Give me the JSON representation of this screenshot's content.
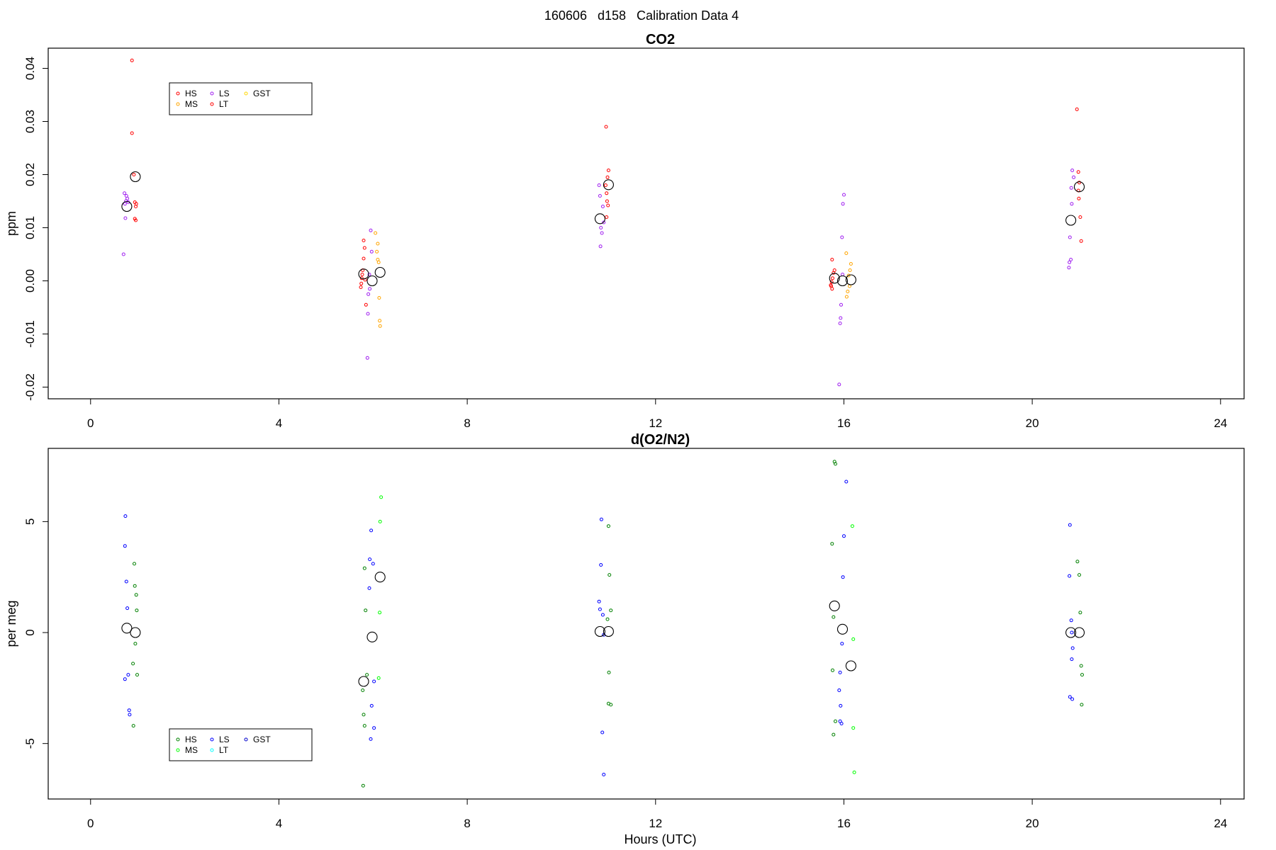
{
  "figure_title": "160606   d158   Calibration Data 4",
  "colors": {
    "HS_co2": "#ff0000",
    "MS_co2": "#ffa500",
    "LS_co2": "#a020f0",
    "LT_co2": "#ff0000",
    "GST_co2": "#ffd700",
    "HS_o2": "#008000",
    "MS_o2": "#00ff00",
    "LS_o2": "#0000ff",
    "LT_o2": "#00ffff",
    "GST_o2": "#0000cc",
    "mean": "#000000"
  },
  "chart_data": [
    {
      "type": "scatter",
      "title": "CO2",
      "xlabel": "",
      "ylabel": "ppm",
      "xlim": [
        -0.9,
        24.5
      ],
      "ylim": [
        -0.0222,
        0.0438
      ],
      "xticks": [
        "0",
        "4",
        "8",
        "12",
        "16",
        "20",
        "24"
      ],
      "yticks": [
        "-0.02",
        "-0.01",
        "0.00",
        "0.01",
        "0.02",
        "0.03",
        "0.04"
      ],
      "legend": {
        "position": "top-left",
        "entries": [
          {
            "label": "HS",
            "color": "#ff0000"
          },
          {
            "label": "MS",
            "color": "#ffa500"
          },
          {
            "label": "LS",
            "color": "#a020f0"
          },
          {
            "label": "LT",
            "color": "#ff0000"
          },
          {
            "label": "GST",
            "color": "#ffd700"
          }
        ]
      },
      "series": [
        {
          "name": "HS",
          "color": "#ff0000",
          "points": [
            [
              0.88,
              0.0415
            ],
            [
              0.88,
              0.0278
            ],
            [
              0.92,
              0.02
            ],
            [
              0.94,
              0.0148
            ],
            [
              0.97,
              0.0145
            ],
            [
              0.96,
              0.014
            ],
            [
              0.94,
              0.0117
            ],
            [
              0.96,
              0.0114
            ],
            [
              5.8,
              0.0076
            ],
            [
              5.82,
              0.0062
            ],
            [
              5.8,
              0.0042
            ],
            [
              5.78,
              0.002
            ],
            [
              5.77,
              0.0012
            ],
            [
              5.76,
              0.0005
            ],
            [
              5.75,
              -0.0005
            ],
            [
              5.74,
              -0.0012
            ],
            [
              5.83,
              0.0002
            ],
            [
              5.85,
              -0.0045
            ],
            [
              10.95,
              0.029
            ],
            [
              11.0,
              0.0208
            ],
            [
              10.98,
              0.0195
            ],
            [
              10.94,
              0.018
            ],
            [
              10.96,
              0.0165
            ],
            [
              10.97,
              0.015
            ],
            [
              10.99,
              0.0142
            ],
            [
              10.96,
              0.012
            ],
            [
              15.75,
              0.004
            ],
            [
              15.8,
              0.002
            ],
            [
              15.78,
              0.0015
            ],
            [
              15.76,
              0.0005
            ],
            [
              15.74,
              -0.0002
            ],
            [
              15.73,
              -0.001
            ],
            [
              15.75,
              -0.0015
            ],
            [
              15.72,
              -0.0008
            ],
            [
              20.95,
              0.0323
            ],
            [
              20.98,
              0.0205
            ],
            [
              21.0,
              0.0185
            ],
            [
              20.98,
              0.017
            ],
            [
              20.99,
              0.0155
            ],
            [
              21.02,
              0.012
            ],
            [
              21.04,
              0.0075
            ]
          ]
        },
        {
          "name": "MS",
          "color": "#ffa500",
          "points": [
            [
              6.05,
              0.009
            ],
            [
              6.1,
              0.007
            ],
            [
              6.08,
              0.0055
            ],
            [
              6.1,
              0.004
            ],
            [
              6.12,
              0.0035
            ],
            [
              6.13,
              -0.0032
            ],
            [
              6.14,
              -0.0075
            ],
            [
              6.15,
              -0.0085
            ],
            [
              16.05,
              0.0052
            ],
            [
              16.15,
              0.0032
            ],
            [
              16.13,
              0.002
            ],
            [
              16.1,
              0.001
            ],
            [
              16.12,
              -0.001
            ],
            [
              16.08,
              -0.002
            ],
            [
              16.06,
              -0.003
            ]
          ]
        },
        {
          "name": "LS",
          "color": "#a020f0",
          "points": [
            [
              0.72,
              0.0165
            ],
            [
              0.76,
              0.016
            ],
            [
              0.78,
              0.0155
            ],
            [
              0.75,
              0.015
            ],
            [
              0.8,
              0.0148
            ],
            [
              0.73,
              0.0145
            ],
            [
              0.74,
              0.0118
            ],
            [
              0.7,
              0.005
            ],
            [
              5.95,
              0.0095
            ],
            [
              5.97,
              0.0055
            ],
            [
              5.92,
              0.0012
            ],
            [
              5.93,
              -0.0015
            ],
            [
              5.9,
              -0.0025
            ],
            [
              5.89,
              -0.0062
            ],
            [
              5.88,
              -0.0145
            ],
            [
              10.8,
              0.018
            ],
            [
              10.82,
              0.016
            ],
            [
              10.88,
              0.014
            ],
            [
              10.9,
              0.011
            ],
            [
              10.84,
              0.01
            ],
            [
              10.86,
              0.009
            ],
            [
              10.83,
              0.0065
            ],
            [
              16.0,
              0.0162
            ],
            [
              15.98,
              0.0145
            ],
            [
              15.96,
              0.0082
            ],
            [
              15.97,
              0.0012
            ],
            [
              15.94,
              -0.0045
            ],
            [
              15.93,
              -0.007
            ],
            [
              15.92,
              -0.008
            ],
            [
              15.9,
              -0.0195
            ],
            [
              20.85,
              0.0208
            ],
            [
              20.88,
              0.0195
            ],
            [
              20.83,
              0.0175
            ],
            [
              20.84,
              0.0145
            ],
            [
              20.8,
              0.0082
            ],
            [
              20.82,
              0.004
            ],
            [
              20.79,
              0.0035
            ],
            [
              20.78,
              0.0025
            ]
          ]
        },
        {
          "name": "mean",
          "color": "#000000",
          "marker": "large-circle",
          "points": [
            [
              0.77,
              0.014
            ],
            [
              0.95,
              0.0196
            ],
            [
              5.8,
              0.0013
            ],
            [
              5.98,
              0.0
            ],
            [
              6.15,
              0.0016
            ],
            [
              10.82,
              0.0117
            ],
            [
              11.0,
              0.0181
            ],
            [
              15.8,
              0.0005
            ],
            [
              15.97,
              0.0
            ],
            [
              16.15,
              0.0002
            ],
            [
              20.82,
              0.0114
            ],
            [
              21.0,
              0.0177
            ]
          ]
        }
      ]
    },
    {
      "type": "scatter",
      "title": "d(O2/N2)",
      "xlabel": "Hours (UTC)",
      "ylabel": "per meg",
      "xlim": [
        -0.9,
        24.5
      ],
      "ylim": [
        -7.5,
        8.3
      ],
      "xticks": [
        "0",
        "4",
        "8",
        "12",
        "16",
        "20",
        "24"
      ],
      "yticks": [
        "-5",
        "0",
        "5"
      ],
      "legend": {
        "position": "bottom-left",
        "entries": [
          {
            "label": "HS",
            "color": "#008000"
          },
          {
            "label": "MS",
            "color": "#00ff00"
          },
          {
            "label": "LS",
            "color": "#0000ff"
          },
          {
            "label": "LT",
            "color": "#00ffff"
          },
          {
            "label": "GST",
            "color": "#0000cc"
          }
        ]
      },
      "series": [
        {
          "name": "HS",
          "color": "#008000",
          "points": [
            [
              0.93,
              3.1
            ],
            [
              0.94,
              2.1
            ],
            [
              0.97,
              1.7
            ],
            [
              0.98,
              1.0
            ],
            [
              0.95,
              -0.5
            ],
            [
              0.9,
              -1.4
            ],
            [
              0.99,
              -1.9
            ],
            [
              0.91,
              -4.2
            ],
            [
              5.82,
              2.9
            ],
            [
              5.84,
              1.0
            ],
            [
              5.87,
              -1.9
            ],
            [
              5.78,
              -2.6
            ],
            [
              5.8,
              -3.7
            ],
            [
              5.82,
              -4.2
            ],
            [
              5.79,
              -6.9
            ],
            [
              11.0,
              4.8
            ],
            [
              11.02,
              2.6
            ],
            [
              11.05,
              1.0
            ],
            [
              10.98,
              0.6
            ],
            [
              11.01,
              -1.8
            ],
            [
              11.0,
              -3.2
            ],
            [
              11.05,
              -3.25
            ],
            [
              15.8,
              7.7
            ],
            [
              15.82,
              7.6
            ],
            [
              15.75,
              4.0
            ],
            [
              15.78,
              0.7
            ],
            [
              15.76,
              -1.7
            ],
            [
              15.82,
              -4.0
            ],
            [
              15.78,
              -4.6
            ],
            [
              20.96,
              3.2
            ],
            [
              21.0,
              2.6
            ],
            [
              21.02,
              0.9
            ],
            [
              21.04,
              -1.5
            ],
            [
              21.06,
              -1.9
            ],
            [
              21.05,
              -3.25
            ]
          ]
        },
        {
          "name": "MS",
          "color": "#00ff00",
          "points": [
            [
              6.17,
              6.1
            ],
            [
              6.15,
              5.0
            ],
            [
              6.14,
              0.9
            ],
            [
              6.12,
              -2.05
            ],
            [
              16.18,
              4.8
            ],
            [
              16.2,
              -0.3
            ],
            [
              16.2,
              -4.3
            ],
            [
              16.22,
              -6.3
            ]
          ]
        },
        {
          "name": "LS",
          "color": "#0000ff",
          "points": [
            [
              0.74,
              5.25
            ],
            [
              0.73,
              3.9
            ],
            [
              0.76,
              2.3
            ],
            [
              0.78,
              1.1
            ],
            [
              0.8,
              -1.9
            ],
            [
              0.73,
              -2.1
            ],
            [
              0.82,
              -3.5
            ],
            [
              0.83,
              -3.7
            ],
            [
              5.96,
              4.6
            ],
            [
              5.93,
              3.3
            ],
            [
              6.0,
              3.1
            ],
            [
              5.92,
              2.0
            ],
            [
              6.02,
              -2.2
            ],
            [
              5.97,
              -3.3
            ],
            [
              6.02,
              -4.3
            ],
            [
              5.95,
              -4.8
            ],
            [
              10.85,
              5.1
            ],
            [
              10.84,
              3.05
            ],
            [
              10.8,
              1.4
            ],
            [
              10.82,
              1.05
            ],
            [
              10.88,
              0.8
            ],
            [
              10.9,
              -0.1
            ],
            [
              10.87,
              -4.5
            ],
            [
              10.9,
              -6.4
            ],
            [
              16.05,
              6.8
            ],
            [
              16.0,
              4.35
            ],
            [
              15.98,
              2.5
            ],
            [
              15.96,
              -0.5
            ],
            [
              15.92,
              -1.8
            ],
            [
              15.9,
              -2.6
            ],
            [
              15.93,
              -3.3
            ],
            [
              15.92,
              -4.0
            ],
            [
              15.95,
              -4.1
            ],
            [
              20.8,
              4.85
            ],
            [
              20.79,
              2.55
            ],
            [
              20.83,
              0.55
            ],
            [
              20.84,
              0.0
            ],
            [
              20.86,
              -0.7
            ],
            [
              20.84,
              -1.2
            ],
            [
              20.8,
              -2.9
            ],
            [
              20.85,
              -3.0
            ]
          ]
        },
        {
          "name": "mean",
          "color": "#000000",
          "marker": "large-circle",
          "points": [
            [
              0.77,
              0.2
            ],
            [
              0.95,
              0.0
            ],
            [
              5.8,
              -2.2
            ],
            [
              5.98,
              -0.2
            ],
            [
              6.15,
              2.5
            ],
            [
              10.82,
              0.05
            ],
            [
              11.0,
              0.05
            ],
            [
              15.8,
              1.2
            ],
            [
              15.97,
              0.15
            ],
            [
              16.15,
              -1.5
            ],
            [
              20.82,
              0.0
            ],
            [
              21.0,
              0.0
            ]
          ]
        }
      ]
    }
  ]
}
